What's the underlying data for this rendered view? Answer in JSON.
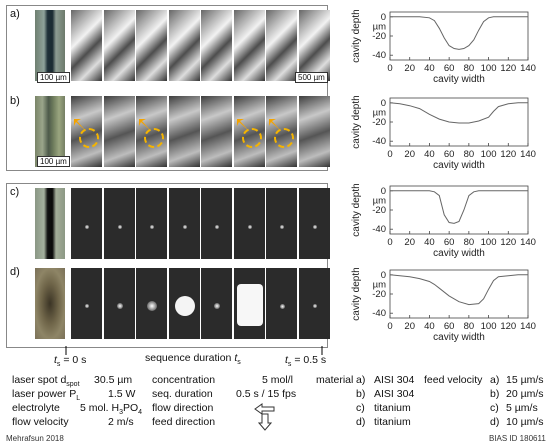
{
  "panels": [
    {
      "label": "a)",
      "scalebar_left": "100 µm",
      "scalebar_right": "500 µm"
    },
    {
      "label": "b)",
      "scalebar_left": "100 µm"
    },
    {
      "label": "c)"
    },
    {
      "label": "d)"
    }
  ],
  "timeline": {
    "start_label": "= 0 s",
    "start_symbol": "t",
    "start_sub": "s",
    "middle_label": "sequence duration",
    "middle_symbol": "t",
    "middle_sub": "s",
    "end_label": "= 0.5 s",
    "end_symbol": "t",
    "end_sub": "s"
  },
  "parameters": {
    "laser_spot_label": "laser spot d",
    "laser_spot_sub": "spot",
    "laser_spot_value": "30.5 µm",
    "laser_power_label": "laser power P",
    "laser_power_sub": "L",
    "laser_power_value": "1.5 W",
    "electrolyte_label": "electrolyte",
    "electrolyte_value": "5 mol. H",
    "electrolyte_sub1": "3",
    "electrolyte_mid": "PO",
    "electrolyte_sub2": "4",
    "flow_velocity_label": "flow velocity",
    "flow_velocity_value": "2 m/s",
    "concentration_label": "concentration",
    "concentration_value": "5 mol/l",
    "seq_duration_label": "seq. duration",
    "seq_duration_value": "0.5 s / 15 fps",
    "flow_direction_label": "flow direction",
    "feed_direction_label": "feed direction"
  },
  "materials": {
    "header": "material",
    "items": [
      {
        "key": "a)",
        "name": "AISI 304"
      },
      {
        "key": "b)",
        "name": "AISI 304"
      },
      {
        "key": "c)",
        "name": "titanium"
      },
      {
        "key": "d)",
        "name": "titanium"
      }
    ]
  },
  "feed_velocity": {
    "header": "feed velocity",
    "items": [
      {
        "key": "a)",
        "value": "15 µm/s"
      },
      {
        "key": "b)",
        "value": "20 µm/s"
      },
      {
        "key": "c)",
        "value": "5 µm/s"
      },
      {
        "key": "d)",
        "value": "10 µm/s"
      }
    ]
  },
  "footer": {
    "left": "Mehrafsun 2018",
    "right": "BIAS ID 180611"
  },
  "chart_data": [
    {
      "type": "line",
      "panel": "a)",
      "xlabel": "cavity width",
      "ylabel": "cavity depth",
      "y_unit": "µm",
      "x_ticks": [
        "0",
        "20",
        "40",
        "60",
        "80",
        "100",
        "120",
        "140"
      ],
      "y_ticks": [
        "0",
        "-20",
        "-40"
      ],
      "xlim": [
        0,
        140
      ],
      "ylim": [
        -45,
        5
      ],
      "x": [
        0,
        10,
        20,
        30,
        40,
        45,
        50,
        55,
        60,
        65,
        70,
        75,
        80,
        85,
        90,
        95,
        100,
        105,
        110,
        120,
        130,
        140
      ],
      "y": [
        0,
        0,
        0,
        0,
        -1,
        -4,
        -12,
        -22,
        -30,
        -33,
        -34,
        -33,
        -30,
        -24,
        -14,
        -5,
        -1,
        0,
        0,
        0,
        0,
        0
      ]
    },
    {
      "type": "line",
      "panel": "b)",
      "xlabel": "cavity width",
      "ylabel": "cavity depth",
      "y_unit": "µm",
      "x_ticks": [
        "0",
        "20",
        "40",
        "60",
        "80",
        "100",
        "120",
        "140"
      ],
      "y_ticks": [
        "0",
        "-20",
        "-40"
      ],
      "xlim": [
        0,
        140
      ],
      "ylim": [
        -45,
        5
      ],
      "x": [
        0,
        10,
        20,
        30,
        40,
        50,
        60,
        70,
        80,
        90,
        100,
        105,
        110,
        120,
        130,
        140
      ],
      "y": [
        0,
        -1,
        -3,
        -6,
        -12,
        -17,
        -20,
        -21,
        -21,
        -19,
        -15,
        -9,
        -4,
        -1,
        0,
        0
      ]
    },
    {
      "type": "line",
      "panel": "c)",
      "xlabel": "cavity width",
      "ylabel": "cavity depth",
      "y_unit": "µm",
      "x_ticks": [
        "0",
        "20",
        "40",
        "60",
        "80",
        "100",
        "120",
        "140"
      ],
      "y_ticks": [
        "0",
        "-20",
        "-40"
      ],
      "xlim": [
        0,
        140
      ],
      "ylim": [
        -45,
        5
      ],
      "x": [
        0,
        10,
        20,
        30,
        40,
        45,
        50,
        55,
        60,
        65,
        70,
        75,
        80,
        85,
        90,
        100,
        110,
        120,
        130,
        140
      ],
      "y": [
        0,
        0,
        0,
        0,
        0,
        -1,
        -5,
        -25,
        -33,
        -34,
        -32,
        -20,
        -5,
        -1,
        0,
        0,
        0,
        0,
        0,
        0
      ]
    },
    {
      "type": "line",
      "panel": "d)",
      "xlabel": "cavity width",
      "ylabel": "cavity depth",
      "y_unit": "µm",
      "x_ticks": [
        "0",
        "20",
        "40",
        "60",
        "80",
        "100",
        "120",
        "140"
      ],
      "y_ticks": [
        "0",
        "-20",
        "-40"
      ],
      "xlim": [
        0,
        140
      ],
      "ylim": [
        -45,
        5
      ],
      "x": [
        0,
        10,
        20,
        30,
        40,
        45,
        50,
        60,
        70,
        80,
        90,
        95,
        100,
        105,
        110,
        120,
        130,
        140
      ],
      "y": [
        0,
        -1,
        -2,
        -4,
        -7,
        -10,
        -14,
        -22,
        -28,
        -31,
        -30,
        -25,
        -15,
        -6,
        -2,
        -1,
        0,
        0
      ]
    }
  ]
}
